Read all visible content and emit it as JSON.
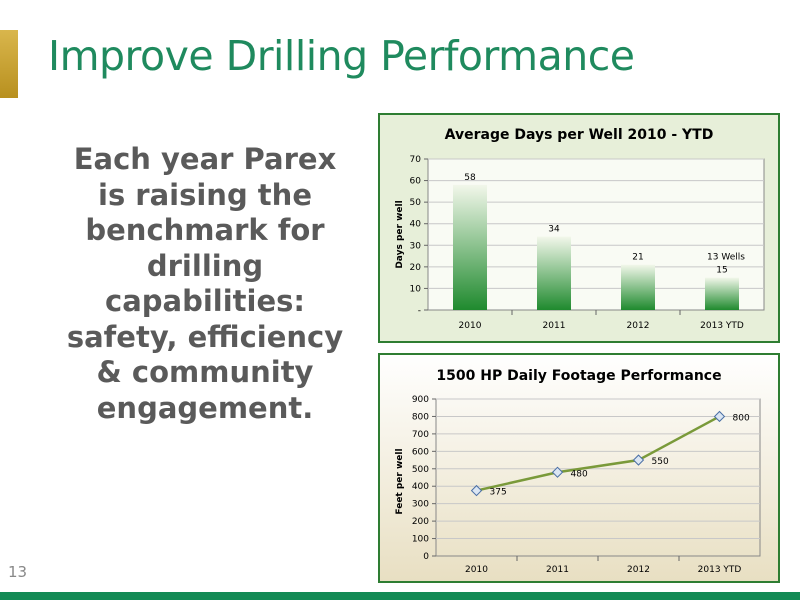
{
  "slide": {
    "title": "Improve Drilling Performance",
    "body_text": "Each year Parex is raising the benchmark for drilling capabilities: safety, efficiency & community engagement.",
    "slide_number": "13",
    "colors": {
      "title": "#1f8a5e",
      "accent_bar": "#c9a43a",
      "bottom_bar": "#138a55",
      "body_text": "#5a5a5a"
    }
  },
  "chart_data": [
    {
      "type": "bar",
      "title": "Average Days per Well 2010 - YTD",
      "xlabel": "",
      "ylabel": "Days per well",
      "categories": [
        "2010",
        "2011",
        "2012",
        "2013 YTD"
      ],
      "values": [
        58,
        34,
        21,
        15
      ],
      "value_labels": [
        "58",
        "34",
        "21",
        "15"
      ],
      "annotations": [
        {
          "category": "2013 YTD",
          "text": "13 Wells"
        }
      ],
      "ylim": [
        0,
        70
      ],
      "yticks": [
        0,
        10,
        20,
        30,
        40,
        50,
        60,
        70
      ],
      "ytick_labels": [
        "-",
        "10",
        "20",
        "30",
        "40",
        "50",
        "60",
        "70"
      ],
      "grid": true,
      "legend": "none",
      "colors": {
        "bar": "#1f8a2e",
        "plot_bg": "#e7efd9",
        "border": "#2e7d32"
      }
    },
    {
      "type": "line",
      "title": "1500 HP Daily Footage Performance",
      "xlabel": "",
      "ylabel": "Feet per well",
      "categories": [
        "2010",
        "2011",
        "2012",
        "2013 YTD"
      ],
      "values": [
        375,
        480,
        550,
        800
      ],
      "value_labels": [
        "375",
        "480",
        "550",
        "800"
      ],
      "ylim": [
        0,
        900
      ],
      "yticks": [
        0,
        100,
        200,
        300,
        400,
        500,
        600,
        700,
        800,
        900
      ],
      "ytick_labels": [
        "0",
        "100",
        "200",
        "300",
        "400",
        "500",
        "600",
        "700",
        "800",
        "900"
      ],
      "grid": true,
      "legend": "none",
      "colors": {
        "line": "#7a9a3a",
        "marker": "#4a6fa5",
        "plot_bg_top": "#ffffff",
        "plot_bg_bottom": "#e8dfc2",
        "border": "#2e7d32"
      }
    }
  ]
}
